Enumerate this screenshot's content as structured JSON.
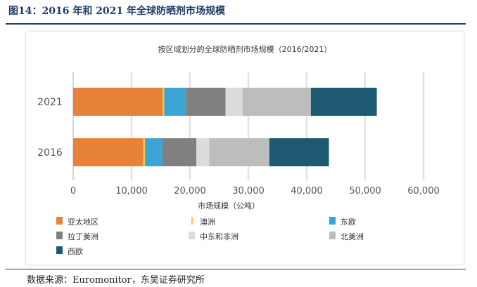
{
  "figure": {
    "title": "图14：2016 年和 2021 年全球防晒剂市场规模",
    "source": "数据来源：Euromonitor，东吴证券研究所"
  },
  "chart_data": {
    "type": "bar",
    "orientation": "horizontal",
    "stacked": true,
    "title": "按区域划分的全球防晒剂市场规模（2016/2021）",
    "xlabel": "市场规模（公吨）",
    "ylabel": "",
    "xlim": [
      0,
      60000
    ],
    "xticks": [
      0,
      10000,
      20000,
      30000,
      40000,
      50000,
      60000
    ],
    "xtick_labels": [
      "0",
      "10,000",
      "20,000",
      "30,000",
      "40,000",
      "50,000",
      "60,000"
    ],
    "categories": [
      "2021",
      "2016"
    ],
    "grid": true,
    "legend_position": "bottom",
    "series": [
      {
        "name": "亚太地区",
        "color": "#E8823A",
        "values": [
          15300,
          12000
        ]
      },
      {
        "name": "澳洲",
        "color": "#F2C84B",
        "values": [
          300,
          300
        ]
      },
      {
        "name": "东欧",
        "color": "#3DA5D6",
        "values": [
          3700,
          3000
        ]
      },
      {
        "name": "拉丁美洲",
        "color": "#808080",
        "values": [
          6800,
          5800
        ]
      },
      {
        "name": "中东和非洲",
        "color": "#DCDCDC",
        "values": [
          2900,
          2200
        ]
      },
      {
        "name": "北美洲",
        "color": "#BDBDBD",
        "values": [
          11700,
          10300
        ]
      },
      {
        "name": "西欧",
        "color": "#1D5971",
        "values": [
          11300,
          10200
        ]
      }
    ]
  }
}
